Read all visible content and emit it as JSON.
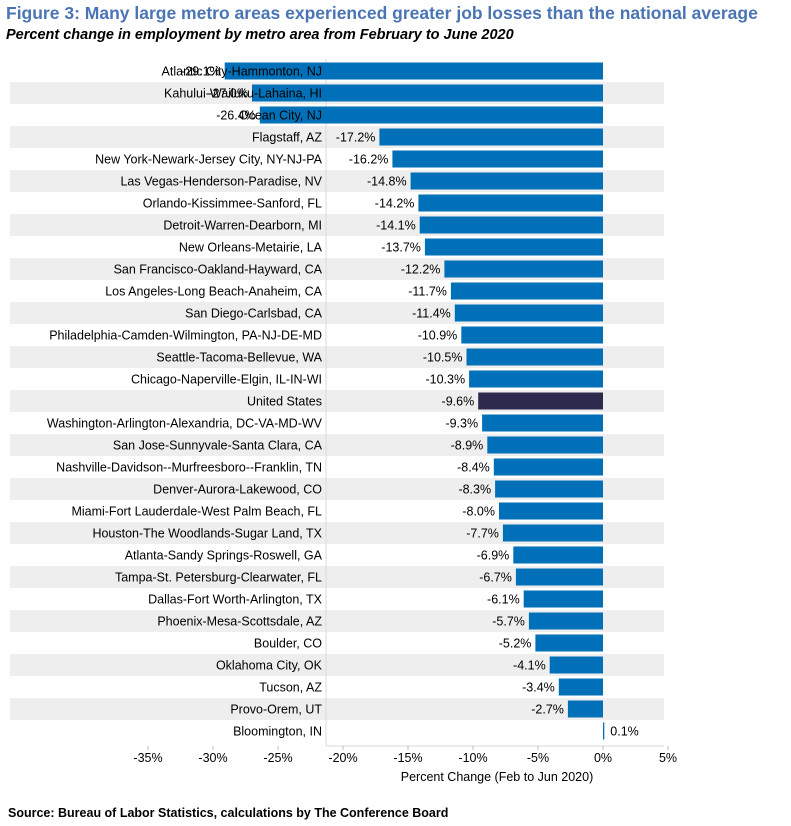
{
  "title": "Figure 3: Many large metro areas experienced greater job losses than the national average",
  "subtitle": "Percent change in employment by metro area from February to June 2020",
  "source": "Source: Bureau of Labor Statistics, calculations by The Conference Board",
  "colors": {
    "bar": "#0070b8",
    "highlight": "#2d2a4e",
    "stripe": "#eeeeee"
  },
  "chart_data": {
    "type": "bar",
    "orientation": "horizontal",
    "xlabel": "Percent Change (Feb to Jun 2020)",
    "xlim": [
      -0.37,
      0.07
    ],
    "ticks": [
      -0.35,
      -0.3,
      -0.25,
      -0.2,
      -0.15,
      -0.1,
      -0.05,
      0.0,
      0.05
    ],
    "tick_labels": [
      "-35%",
      "-30%",
      "-25%",
      "-20%",
      "-15%",
      "-10%",
      "-5%",
      "0%",
      "5%"
    ],
    "highlight": "United States",
    "categories": [
      "Atlantic City-Hammonton, NJ",
      "Kahului-Wailuku-Lahaina, HI",
      "Ocean City, NJ",
      "Flagstaff, AZ",
      "New York-Newark-Jersey City, NY-NJ-PA",
      "Las Vegas-Henderson-Paradise, NV",
      "Orlando-Kissimmee-Sanford, FL",
      "Detroit-Warren-Dearborn, MI",
      "New Orleans-Metairie, LA",
      "San Francisco-Oakland-Hayward, CA",
      "Los Angeles-Long Beach-Anaheim, CA",
      "San Diego-Carlsbad, CA",
      "Philadelphia-Camden-Wilmington, PA-NJ-DE-MD",
      "Seattle-Tacoma-Bellevue, WA",
      "Chicago-Naperville-Elgin, IL-IN-WI",
      "United States",
      "Washington-Arlington-Alexandria, DC-VA-MD-WV",
      "San Jose-Sunnyvale-Santa Clara, CA",
      "Nashville-Davidson--Murfreesboro--Franklin, TN",
      "Denver-Aurora-Lakewood, CO",
      "Miami-Fort Lauderdale-West Palm Beach, FL",
      "Houston-The Woodlands-Sugar Land, TX",
      "Atlanta-Sandy Springs-Roswell, GA",
      "Tampa-St. Petersburg-Clearwater, FL",
      "Dallas-Fort Worth-Arlington, TX",
      "Phoenix-Mesa-Scottsdale, AZ",
      "Boulder, CO",
      "Oklahoma City, OK",
      "Tucson, AZ",
      "Provo-Orem, UT",
      "Bloomington, IN"
    ],
    "values": [
      -0.291,
      -0.27,
      -0.264,
      -0.172,
      -0.162,
      -0.148,
      -0.142,
      -0.141,
      -0.137,
      -0.122,
      -0.117,
      -0.114,
      -0.109,
      -0.105,
      -0.103,
      -0.096,
      -0.093,
      -0.089,
      -0.084,
      -0.083,
      -0.08,
      -0.077,
      -0.069,
      -0.067,
      -0.061,
      -0.057,
      -0.052,
      -0.041,
      -0.034,
      -0.027,
      0.001
    ],
    "value_labels": [
      "-29.1%",
      "-27.0%",
      "-26.4%",
      "-17.2%",
      "-16.2%",
      "-14.8%",
      "-14.2%",
      "-14.1%",
      "-13.7%",
      "-12.2%",
      "-11.7%",
      "-11.4%",
      "-10.9%",
      "-10.5%",
      "-10.3%",
      "-9.6%",
      "-9.3%",
      "-8.9%",
      "-8.4%",
      "-8.3%",
      "-8.0%",
      "-7.7%",
      "-6.9%",
      "-6.7%",
      "-6.1%",
      "-5.7%",
      "-5.2%",
      "-4.1%",
      "-3.4%",
      "-2.7%",
      "0.1%"
    ]
  }
}
